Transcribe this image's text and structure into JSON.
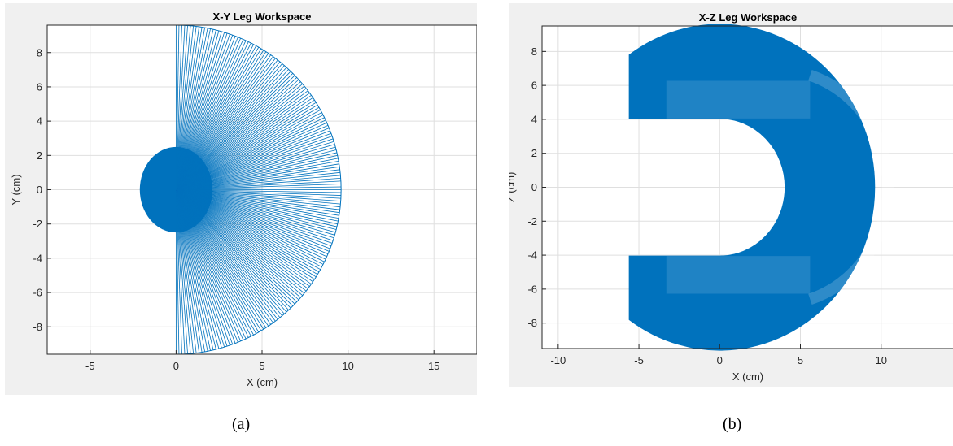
{
  "colors": {
    "series": "#0072BD",
    "grid": "#dfdfdf",
    "axis": "#262626",
    "figure_bg": "#f0f0f0"
  },
  "captions": {
    "a": "(a)",
    "b": "(b)"
  },
  "chart_data": [
    {
      "type": "line",
      "title": "X-Y Leg Workspace",
      "xlabel": "X (cm)",
      "ylabel": "Y (cm)",
      "xlim": [
        -7.5,
        17.5
      ],
      "ylim": [
        -9.6,
        9.6
      ],
      "xticks": [
        -5,
        0,
        5,
        10,
        15
      ],
      "yticks": [
        -8,
        -6,
        -4,
        -2,
        0,
        2,
        4,
        6,
        8
      ],
      "grid": true,
      "shape": "half-disk fan of radial lines from origin",
      "center": [
        0,
        0
      ],
      "radius": 9.6,
      "angle_range_deg": [
        -90,
        90
      ],
      "n_rays": 180
    },
    {
      "type": "area",
      "title": "X-Z Leg Workspace",
      "xlabel": "X (cm)",
      "ylabel": "Z (cm)",
      "xlim": [
        -11,
        14.5
      ],
      "ylim": [
        -9.5,
        9.5
      ],
      "xticks": [
        -10,
        -5,
        0,
        5,
        10
      ],
      "yticks": [
        -8,
        -6,
        -4,
        -2,
        0,
        2,
        4,
        6,
        8
      ],
      "grid": true,
      "shape": "annular D-shaped workspace",
      "center": [
        0,
        0
      ],
      "outer_radius": 9.6,
      "inner_radius": 4.05,
      "cut_x": -5.6,
      "inner_band_x": 5.6,
      "slot_half_height": 4.05
    }
  ]
}
